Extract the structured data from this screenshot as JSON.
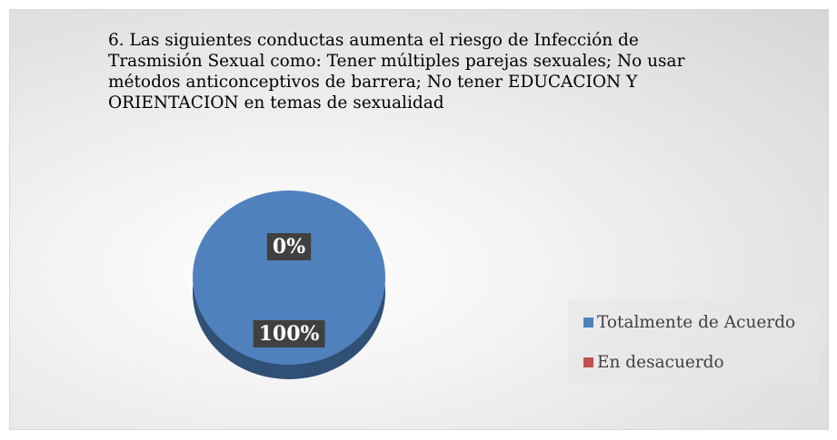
{
  "chart_data": {
    "type": "pie",
    "title": "6. Las siguientes conductas aumenta el riesgo de Infección de Trasmisión Sexual como: Tener múltiples parejas sexuales; No usar métodos anticonceptivos de barrera; No tener EDUCACION Y ORIENTACION en temas de sexualidad",
    "categories": [
      "Totalmente de Acuerdo",
      "En desacuerdo"
    ],
    "values": [
      100,
      0
    ],
    "value_labels": [
      "100%",
      "0%"
    ],
    "colors": [
      "#4f81bd",
      "#c0504d"
    ],
    "legend": "right"
  }
}
